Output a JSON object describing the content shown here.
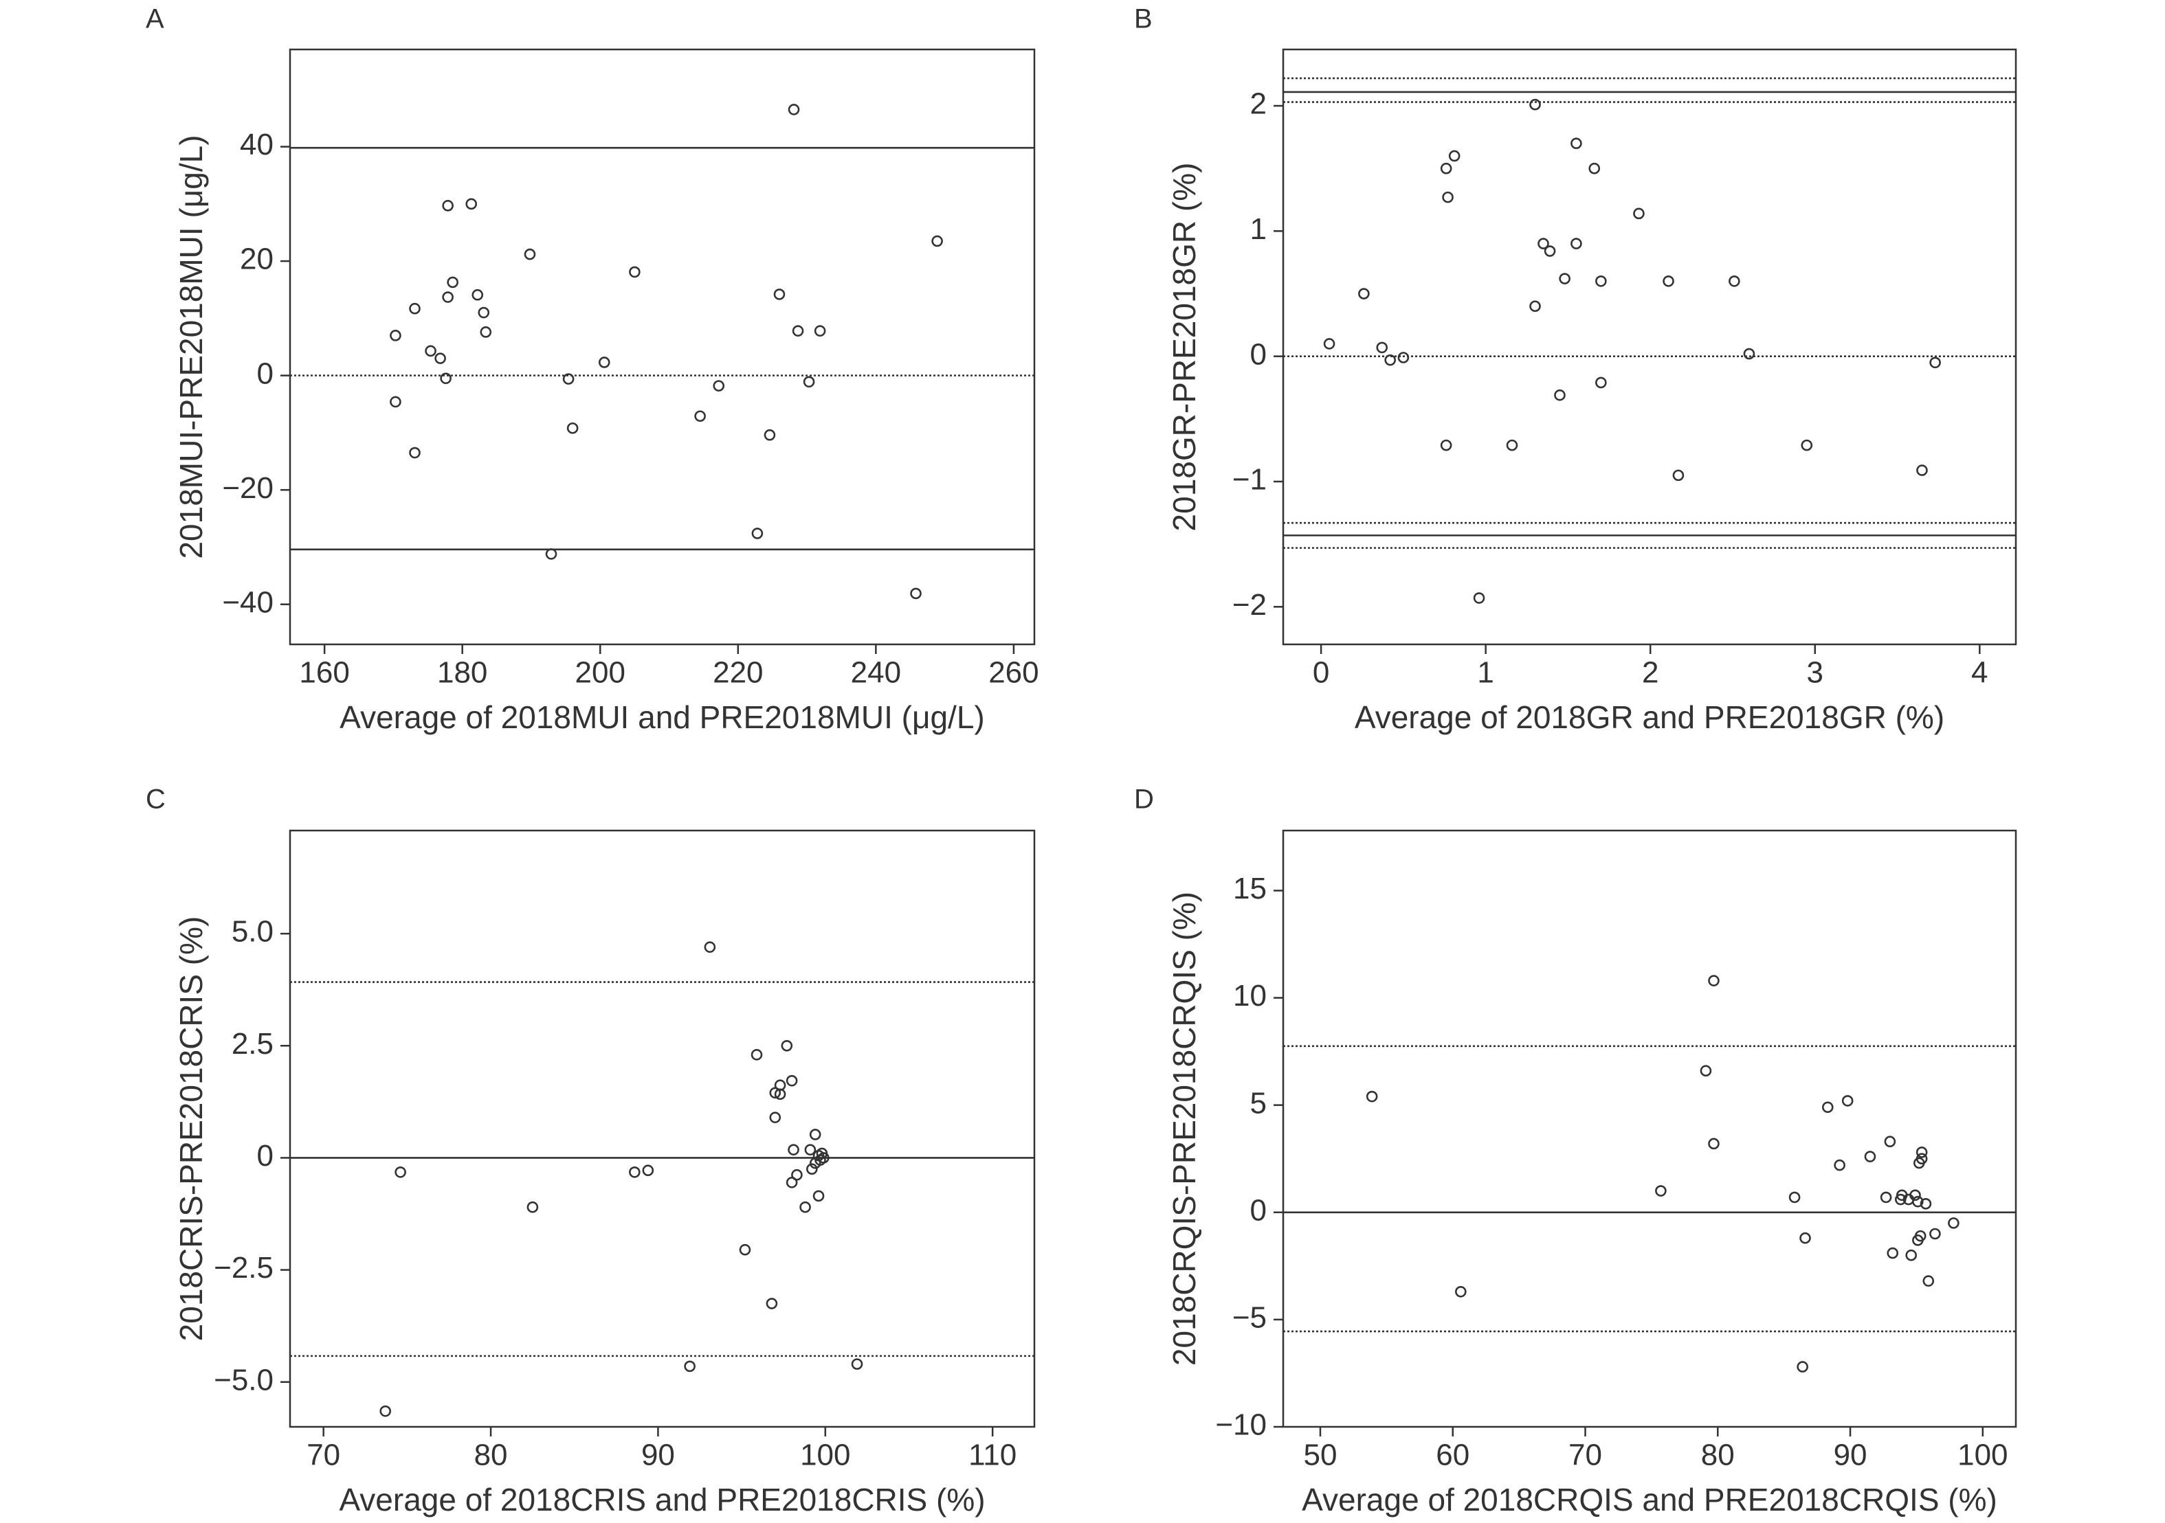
{
  "figure": {
    "line_color": "#333333",
    "background": "#ffffff"
  },
  "chart_data": [
    {
      "type": "scatter",
      "panel_label": "A",
      "xlabel": "Average of 2018MUI and PRE2018MUI (μg/L)",
      "ylabel": "2018MUI-PRE2018MUI (μg/L)",
      "xlim": [
        155,
        263
      ],
      "ylim": [
        -47,
        57
      ],
      "xticks": [
        160,
        180,
        200,
        220,
        240,
        260
      ],
      "yticks": [
        -40,
        -20,
        0,
        20,
        40
      ],
      "xtick_labels": [
        "160",
        "180",
        "200",
        "220",
        "240",
        "260"
      ],
      "ytick_labels": [
        "−40",
        "−20",
        "0",
        "20",
        "40"
      ],
      "reference_lines": [
        {
          "value": 39.8,
          "style": "solid"
        },
        {
          "value": 0,
          "style": "dotted"
        },
        {
          "value": -30.4,
          "style": "solid"
        }
      ],
      "points": [
        [
          170.3,
          7.0
        ],
        [
          170.3,
          -4.6
        ],
        [
          173.1,
          11.7
        ],
        [
          173.1,
          -13.5
        ],
        [
          175.4,
          4.3
        ],
        [
          176.8,
          3.0
        ],
        [
          177.6,
          -0.5
        ],
        [
          177.9,
          13.7
        ],
        [
          177.9,
          29.7
        ],
        [
          178.6,
          16.3
        ],
        [
          181.3,
          30.0
        ],
        [
          182.2,
          14.1
        ],
        [
          183.1,
          11.0
        ],
        [
          183.4,
          7.6
        ],
        [
          189.8,
          21.2
        ],
        [
          192.9,
          -31.2
        ],
        [
          195.4,
          -0.6
        ],
        [
          196.0,
          -9.2
        ],
        [
          200.6,
          2.3
        ],
        [
          205.0,
          18.1
        ],
        [
          214.5,
          -7.1
        ],
        [
          217.2,
          -1.8
        ],
        [
          222.8,
          -27.6
        ],
        [
          224.6,
          -10.4
        ],
        [
          226.0,
          14.2
        ],
        [
          228.1,
          46.5
        ],
        [
          228.7,
          7.8
        ],
        [
          230.3,
          -1.1
        ],
        [
          231.9,
          7.8
        ],
        [
          245.8,
          -38.1
        ],
        [
          248.9,
          23.5
        ]
      ]
    },
    {
      "type": "scatter",
      "panel_label": "B",
      "xlabel": "Average of 2018GR and PRE2018GR (%)",
      "ylabel": "2018GR-PRE2018GR (%)",
      "xlim": [
        -0.23,
        4.22
      ],
      "ylim": [
        -2.3,
        2.45
      ],
      "xticks": [
        0,
        1,
        2,
        3,
        4
      ],
      "yticks": [
        -2,
        -1,
        0,
        1,
        2
      ],
      "xtick_labels": [
        "0",
        "1",
        "2",
        "3",
        "4"
      ],
      "ytick_labels": [
        "−2",
        "−1",
        "0",
        "1",
        "2"
      ],
      "reference_lines": [
        {
          "value": 2.22,
          "style": "dotted"
        },
        {
          "value": 2.11,
          "style": "solid"
        },
        {
          "value": 2.03,
          "style": "dotted"
        },
        {
          "value": 0,
          "style": "dotted"
        },
        {
          "value": -1.33,
          "style": "dotted"
        },
        {
          "value": -1.43,
          "style": "solid"
        },
        {
          "value": -1.53,
          "style": "dotted"
        }
      ],
      "points": [
        [
          0.05,
          0.1
        ],
        [
          0.26,
          0.5
        ],
        [
          0.37,
          0.07
        ],
        [
          0.42,
          -0.03
        ],
        [
          0.5,
          -0.01
        ],
        [
          0.76,
          1.5
        ],
        [
          0.77,
          1.27
        ],
        [
          0.76,
          -0.71
        ],
        [
          0.81,
          1.6
        ],
        [
          0.96,
          -1.93
        ],
        [
          1.16,
          -0.71
        ],
        [
          1.3,
          0.4
        ],
        [
          1.3,
          2.01
        ],
        [
          1.35,
          0.9
        ],
        [
          1.39,
          0.84
        ],
        [
          1.45,
          -0.31
        ],
        [
          1.48,
          0.62
        ],
        [
          1.55,
          0.9
        ],
        [
          1.55,
          1.7
        ],
        [
          1.66,
          1.5
        ],
        [
          1.7,
          0.6
        ],
        [
          1.7,
          -0.21
        ],
        [
          1.93,
          1.14
        ],
        [
          2.11,
          0.6
        ],
        [
          2.17,
          -0.95
        ],
        [
          2.51,
          0.6
        ],
        [
          2.6,
          0.02
        ],
        [
          2.95,
          -0.71
        ],
        [
          3.65,
          -0.91
        ],
        [
          3.73,
          -0.05
        ]
      ]
    },
    {
      "type": "scatter",
      "panel_label": "C",
      "xlabel": "Average of 2018CRIS and PRE2018CRIS (%)",
      "ylabel": "2018CRIS-PRE2018CRIS (%)",
      "xlim": [
        68,
        112.5
      ],
      "ylim": [
        -6,
        7.3
      ],
      "xticks": [
        70,
        80,
        90,
        100,
        110
      ],
      "yticks": [
        -5,
        -2.5,
        0,
        2.5,
        5
      ],
      "xtick_labels": [
        "70",
        "80",
        "90",
        "100",
        "110"
      ],
      "ytick_labels": [
        "−5.0",
        "−2.5",
        "0",
        "2.5",
        "5.0"
      ],
      "reference_lines": [
        {
          "value": 3.92,
          "style": "dotted"
        },
        {
          "value": 0,
          "style": "solid"
        },
        {
          "value": -4.42,
          "style": "dotted"
        }
      ],
      "points": [
        [
          73.7,
          -5.65
        ],
        [
          74.6,
          -0.32
        ],
        [
          82.5,
          -1.1
        ],
        [
          88.6,
          -0.32
        ],
        [
          89.4,
          -0.28
        ],
        [
          91.9,
          -4.65
        ],
        [
          93.1,
          4.7
        ],
        [
          95.2,
          -2.05
        ],
        [
          95.9,
          2.3
        ],
        [
          96.8,
          -3.25
        ],
        [
          97.0,
          1.45
        ],
        [
          97.0,
          0.9
        ],
        [
          97.3,
          1.62
        ],
        [
          97.3,
          1.42
        ],
        [
          97.7,
          2.5
        ],
        [
          98.0,
          1.72
        ],
        [
          98.0,
          -0.55
        ],
        [
          98.1,
          0.18
        ],
        [
          98.3,
          -0.38
        ],
        [
          98.8,
          -1.1
        ],
        [
          99.1,
          0.18
        ],
        [
          99.2,
          -0.25
        ],
        [
          99.4,
          0.52
        ],
        [
          99.4,
          -0.12
        ],
        [
          99.6,
          -0.85
        ],
        [
          99.6,
          0.05
        ],
        [
          99.7,
          -0.05
        ],
        [
          99.8,
          0.1
        ],
        [
          99.9,
          0.0
        ],
        [
          101.9,
          -4.6
        ]
      ]
    },
    {
      "type": "scatter",
      "panel_label": "D",
      "xlabel": "Average of 2018CRQIS and PRE2018CRQIS (%)",
      "ylabel": "2018CRQIS-PRE2018CRQIS (%)",
      "xlim": [
        47.2,
        102.5
      ],
      "ylim": [
        -10,
        17.8
      ],
      "xticks": [
        50,
        60,
        70,
        80,
        90,
        100
      ],
      "yticks": [
        -10,
        -5,
        0,
        5,
        10,
        15
      ],
      "xtick_labels": [
        "50",
        "60",
        "70",
        "80",
        "90",
        "100"
      ],
      "ytick_labels": [
        "−10",
        "−5",
        "0",
        "5",
        "10",
        "15"
      ],
      "reference_lines": [
        {
          "value": 7.75,
          "style": "dotted"
        },
        {
          "value": 0,
          "style": "solid"
        },
        {
          "value": -5.55,
          "style": "dotted"
        }
      ],
      "points": [
        [
          53.9,
          5.4
        ],
        [
          60.6,
          -3.7
        ],
        [
          75.7,
          1.0
        ],
        [
          79.1,
          6.6
        ],
        [
          79.7,
          10.8
        ],
        [
          79.7,
          3.2
        ],
        [
          85.8,
          0.7
        ],
        [
          86.4,
          -7.2
        ],
        [
          86.6,
          -1.2
        ],
        [
          88.3,
          4.9
        ],
        [
          89.2,
          2.2
        ],
        [
          89.8,
          5.2
        ],
        [
          91.5,
          2.6
        ],
        [
          92.7,
          0.7
        ],
        [
          93.0,
          3.3
        ],
        [
          93.2,
          -1.9
        ],
        [
          93.8,
          0.6
        ],
        [
          93.9,
          0.8
        ],
        [
          94.4,
          0.6
        ],
        [
          94.6,
          -2.0
        ],
        [
          94.9,
          0.8
        ],
        [
          95.1,
          0.5
        ],
        [
          95.1,
          -1.3
        ],
        [
          95.2,
          2.3
        ],
        [
          95.3,
          -1.1
        ],
        [
          95.4,
          2.8
        ],
        [
          95.4,
          2.5
        ],
        [
          95.7,
          0.4
        ],
        [
          95.9,
          -3.2
        ],
        [
          96.4,
          -1.0
        ],
        [
          97.8,
          -0.5
        ]
      ]
    }
  ]
}
